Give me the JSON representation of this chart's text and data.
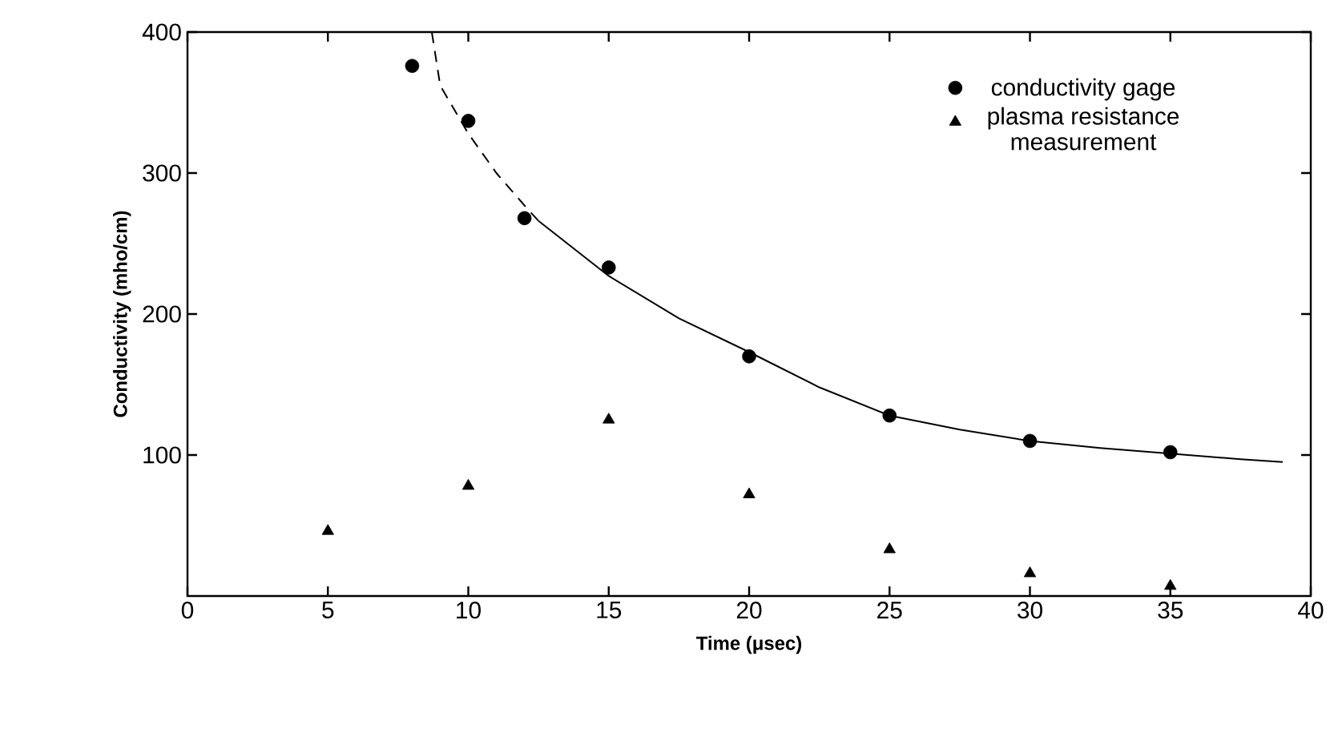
{
  "chart_data": {
    "type": "scatter",
    "xlabel": "Time (μsec)",
    "ylabel": "Conductivity (mho/cm)",
    "xlim": [
      0,
      40
    ],
    "ylim": [
      0,
      400
    ],
    "xticks": [
      0,
      5,
      10,
      15,
      20,
      25,
      30,
      35,
      40
    ],
    "yticks": [
      100,
      200,
      300,
      400
    ],
    "legend": "top right",
    "grid": false,
    "series": [
      {
        "name": "conductivity gage",
        "marker": "circle",
        "color": "#000000",
        "x": [
          8,
          10,
          12,
          15,
          20,
          25,
          30,
          35
        ],
        "values": [
          376,
          337,
          268,
          233,
          170,
          128,
          110,
          102
        ]
      },
      {
        "name": "plasma resistance measurement",
        "marker": "triangle",
        "color": "#000000",
        "x": [
          5,
          10,
          15,
          20,
          25,
          30,
          35
        ],
        "values": [
          46,
          78,
          125,
          72,
          33,
          16,
          7
        ]
      },
      {
        "type": "line",
        "line_style": "dashed",
        "marker": "none",
        "color": "#000000",
        "x": [
          8.7,
          9,
          10,
          11,
          12,
          12.5
        ],
        "values": [
          400,
          362,
          328,
          300,
          277,
          266
        ]
      },
      {
        "type": "line",
        "line_style": "solid",
        "marker": "none",
        "color": "#000000",
        "x": [
          12.5,
          15,
          17.5,
          20,
          22.5,
          25,
          27.5,
          30,
          32.5,
          35,
          37.5,
          39
        ],
        "values": [
          266,
          227,
          197,
          173,
          148,
          128,
          118,
          110,
          105,
          101,
          97,
          95
        ]
      }
    ]
  }
}
